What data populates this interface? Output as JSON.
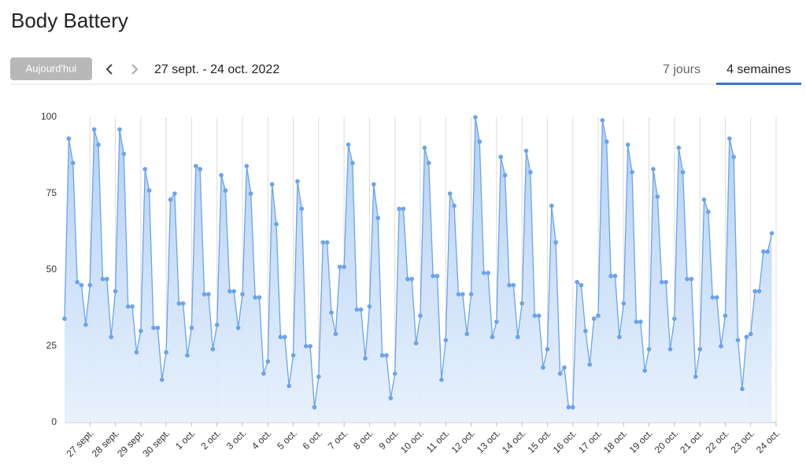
{
  "header": {
    "title": "Body Battery"
  },
  "toolbar": {
    "today_button": "Aujourd'hui",
    "date_range": "27 sept. - 24 oct. 2022"
  },
  "tabs": {
    "items": [
      "7 jours",
      "4 semaines"
    ],
    "active": 1
  },
  "chart_data": {
    "type": "area",
    "color": "#6aa3ee",
    "values": [
      34,
      93,
      85,
      46,
      45,
      32,
      45,
      96,
      91,
      47,
      47,
      28,
      43,
      96,
      88,
      38,
      38,
      23,
      30,
      83,
      76,
      31,
      31,
      14,
      23,
      73,
      75,
      39,
      39,
      22,
      31,
      84,
      83,
      42,
      42,
      24,
      32,
      81,
      76,
      43,
      43,
      31,
      42,
      84,
      75,
      41,
      41,
      16,
      20,
      78,
      65,
      28,
      28,
      12,
      22,
      79,
      70,
      25,
      25,
      5,
      15,
      59,
      59,
      36,
      29,
      51,
      51,
      91,
      85,
      37,
      37,
      21,
      38,
      78,
      67,
      22,
      22,
      8,
      16,
      70,
      70,
      47,
      47,
      26,
      35,
      90,
      85,
      48,
      48,
      14,
      27,
      75,
      71,
      42,
      42,
      29,
      42,
      100,
      92,
      49,
      49,
      28,
      33,
      87,
      81,
      45,
      45,
      28,
      39,
      89,
      82,
      35,
      35,
      18,
      24,
      71,
      59,
      16,
      18,
      5,
      5,
      46,
      45,
      30,
      19,
      34,
      35,
      99,
      92,
      48,
      48,
      28,
      39,
      91,
      82,
      33,
      33,
      17,
      24,
      83,
      74,
      46,
      46,
      24,
      34,
      90,
      82,
      47,
      47,
      15,
      24,
      73,
      69,
      41,
      41,
      25,
      35,
      93,
      87,
      27,
      11,
      28,
      29,
      43,
      43,
      56,
      56,
      62
    ],
    "xlim": [
      0,
      168
    ],
    "xticks": [
      {
        "value": 6,
        "label": "27 sept."
      },
      {
        "value": 12,
        "label": "28 sept."
      },
      {
        "value": 18,
        "label": "29 sept."
      },
      {
        "value": 24,
        "label": "30 sept."
      },
      {
        "value": 30,
        "label": "1 oct."
      },
      {
        "value": 36,
        "label": "2 oct."
      },
      {
        "value": 42,
        "label": "3 oct."
      },
      {
        "value": 48,
        "label": "4 oct."
      },
      {
        "value": 54,
        "label": "5 oct."
      },
      {
        "value": 60,
        "label": "6 oct."
      },
      {
        "value": 66,
        "label": "7 oct."
      },
      {
        "value": 72,
        "label": "8 oct."
      },
      {
        "value": 78,
        "label": "9 oct."
      },
      {
        "value": 84,
        "label": "10 oct."
      },
      {
        "value": 90,
        "label": "11 oct."
      },
      {
        "value": 96,
        "label": "12 oct."
      },
      {
        "value": 102,
        "label": "13 oct."
      },
      {
        "value": 108,
        "label": "14 oct."
      },
      {
        "value": 114,
        "label": "15 oct."
      },
      {
        "value": 120,
        "label": "16 oct."
      },
      {
        "value": 126,
        "label": "17 oct."
      },
      {
        "value": 132,
        "label": "18 oct."
      },
      {
        "value": 138,
        "label": "19 oct."
      },
      {
        "value": 144,
        "label": "20 oct."
      },
      {
        "value": 150,
        "label": "21 oct."
      },
      {
        "value": 156,
        "label": "22 oct."
      },
      {
        "value": 162,
        "label": "23 oct."
      },
      {
        "value": 168,
        "label": "24 oct."
      }
    ],
    "ylim": [
      0,
      100
    ],
    "yticks": [
      0,
      25,
      50,
      75,
      100
    ],
    "grid": "x"
  }
}
